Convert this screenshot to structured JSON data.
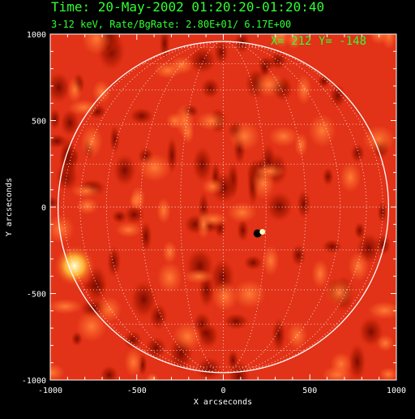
{
  "header": {
    "time_line": "Time: 20-May-2002 01:20:20-01:20:40",
    "rate_line": "3-12 keV, Rate/BgRate:  2.80E+01/  6.17E+00"
  },
  "cursor_readout": "X=  212 Y= -148",
  "axes": {
    "xlabel": "X arcseconds",
    "ylabel": "Y arcseconds",
    "x_ticks": [
      "-1000",
      "-500",
      "0",
      "500",
      "1000"
    ],
    "y_ticks": [
      "1000",
      "500",
      "0",
      "-500",
      "-1000"
    ],
    "x_range": [
      -1000,
      1000
    ],
    "y_range": [
      -1000,
      1000
    ]
  },
  "solar_disk": {
    "radius_arcsec": 955,
    "grid": "heliographic, 15 degree spacing",
    "limb_color": "#ffffff"
  },
  "sources": {
    "flare": {
      "x_arcsec": 212,
      "y_arcsec": -148
    },
    "bright_patch": {
      "x_arcsec": -860,
      "y_arcsec": -340
    }
  },
  "colors": {
    "text": "#32ff32",
    "background_map": "#e8351a",
    "axes": "#ffffff"
  }
}
